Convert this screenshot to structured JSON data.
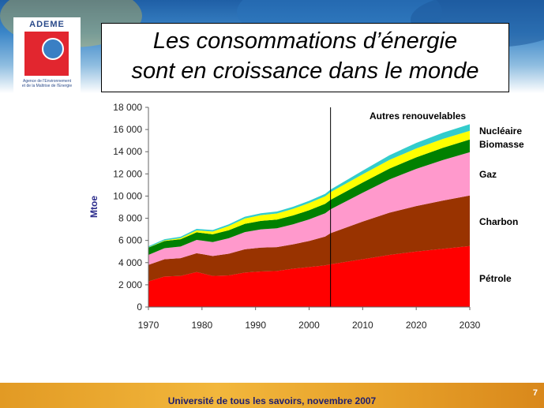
{
  "slide": {
    "title_line1": "Les consommations d’énergie",
    "title_line2": "sont en croissance dans le monde",
    "footer": "Université de tous les savoirs, novembre 2007",
    "page_number": "7"
  },
  "logo": {
    "name": "ADEME",
    "subtitle_line1": "Agence de l'Environnement",
    "subtitle_line2": "et de la Maîtrise de l'Energie",
    "colors": {
      "square": "#e2262f",
      "globe": "#3a7fc4",
      "text": "#2a4a8a"
    }
  },
  "chart_data": {
    "type": "area",
    "stacked": true,
    "title": "",
    "xlabel": "",
    "ylabel": "Mtoe",
    "xlim": [
      1970,
      2030
    ],
    "ylim": [
      0,
      18000
    ],
    "x_ticks": [
      1970,
      1980,
      1990,
      2000,
      2010,
      2020,
      2030
    ],
    "x_tick_labels": [
      "1970",
      "1980",
      "1990",
      "2000",
      "2010",
      "2020",
      "2030"
    ],
    "y_ticks": [
      0,
      2000,
      4000,
      6000,
      8000,
      10000,
      12000,
      14000,
      16000,
      18000
    ],
    "y_tick_labels": [
      "0",
      "2 000",
      "4 000",
      "6 000",
      "8 000",
      "10 000",
      "12 000",
      "14 000",
      "16 000",
      "18 000"
    ],
    "grid": false,
    "projection_start_year": 2004,
    "x": [
      1970,
      1973,
      1976,
      1979,
      1982,
      1985,
      1988,
      1991,
      1994,
      1997,
      2000,
      2003,
      2004,
      2010,
      2015,
      2020,
      2025,
      2030
    ],
    "series": [
      {
        "name": "Pétrole",
        "color": "#ff0000",
        "values": [
          2300,
          2750,
          2800,
          3150,
          2800,
          2850,
          3100,
          3200,
          3250,
          3450,
          3600,
          3750,
          3850,
          4300,
          4700,
          5000,
          5250,
          5500
        ]
      },
      {
        "name": "Charbon",
        "color": "#993300",
        "values": [
          1500,
          1550,
          1600,
          1700,
          1800,
          1950,
          2100,
          2150,
          2150,
          2200,
          2350,
          2600,
          2800,
          3400,
          3800,
          4100,
          4350,
          4550
        ]
      },
      {
        "name": "Gaz",
        "color": "#ff99cc",
        "values": [
          900,
          1000,
          1050,
          1200,
          1250,
          1400,
          1550,
          1650,
          1700,
          1800,
          1950,
          2100,
          2150,
          2600,
          3000,
          3350,
          3650,
          3900
        ]
      },
      {
        "name": "Biomasse",
        "color": "#008000",
        "values": [
          650,
          650,
          660,
          680,
          700,
          720,
          750,
          760,
          780,
          800,
          820,
          850,
          860,
          920,
          980,
          1040,
          1100,
          1150
        ]
      },
      {
        "name": "Nucléaire",
        "color": "#ffff00",
        "values": [
          20,
          50,
          100,
          180,
          250,
          380,
          480,
          520,
          550,
          600,
          650,
          680,
          690,
          740,
          780,
          800,
          800,
          780
        ]
      },
      {
        "name": "Autres renouvelables",
        "color": "#33cccc",
        "values": [
          100,
          110,
          120,
          130,
          140,
          150,
          160,
          170,
          180,
          190,
          200,
          220,
          230,
          330,
          420,
          500,
          560,
          600
        ]
      }
    ]
  }
}
